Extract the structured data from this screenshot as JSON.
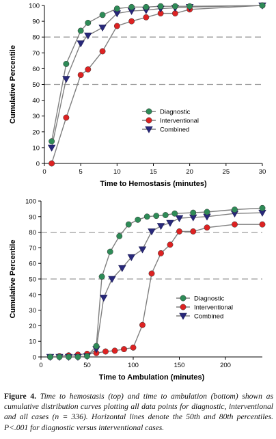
{
  "caption": {
    "label": "Figure 4.",
    "text": "Time to hemostasis (top) and time to ambulation (bottom) shown as cumulative distribution curves plotting all data points for diagnostic, interventional and all cases (n = 336). Horizontal lines denote the 50th and 80th percentiles. P<.001 for diagnostic versus interventional cases."
  },
  "chart_data": [
    {
      "type": "line",
      "xlabel": "Time to Hemostasis (minutes)",
      "ylabel": "Cumulative Percentile",
      "xlim": [
        0,
        30
      ],
      "ylim": [
        0,
        100
      ],
      "xticks": [
        0,
        5,
        10,
        15,
        20,
        25,
        30
      ],
      "yticks": [
        0,
        10,
        20,
        30,
        40,
        50,
        60,
        70,
        80,
        90,
        100
      ],
      "reference_lines": [
        50,
        80
      ],
      "grid": false,
      "legend_position": "lower-right",
      "series": [
        {
          "name": "Diagnostic",
          "color": "#2e8b57",
          "marker": "circle",
          "x": [
            1,
            3,
            5,
            6,
            8,
            10,
            12,
            14,
            16,
            18,
            20,
            30
          ],
          "y": [
            14,
            63,
            84,
            89,
            94,
            98,
            99,
            99,
            99.5,
            99.5,
            99.5,
            100
          ]
        },
        {
          "name": "Interventional",
          "color": "#dd2222",
          "marker": "circle",
          "x": [
            1,
            3,
            5,
            6,
            8,
            10,
            12,
            14,
            16,
            18,
            20,
            30
          ],
          "y": [
            0,
            29,
            56,
            59.5,
            71,
            87,
            90,
            92.5,
            95,
            95,
            97.5,
            100
          ]
        },
        {
          "name": "Combined",
          "color": "#28287a",
          "marker": "triangle-down",
          "x": [
            1,
            3,
            5,
            6,
            8,
            10,
            12,
            14,
            16,
            18,
            20,
            30
          ],
          "y": [
            10,
            53.5,
            76,
            81,
            86,
            95,
            96.5,
            97,
            98,
            98.5,
            99,
            100
          ]
        }
      ]
    },
    {
      "type": "line",
      "xlabel": "Time to Ambulation (minutes)",
      "ylabel": "Cumulative Percentile",
      "xlim": [
        0,
        240
      ],
      "ylim": [
        0,
        100
      ],
      "xticks": [
        0,
        50,
        100,
        150,
        200
      ],
      "yticks": [
        0,
        10,
        20,
        30,
        40,
        50,
        60,
        70,
        80,
        90,
        100
      ],
      "reference_lines": [
        50,
        80
      ],
      "grid": false,
      "legend_position": "lower-right",
      "series": [
        {
          "name": "Diagnostic",
          "color": "#2e8b57",
          "marker": "circle",
          "x": [
            10,
            20,
            30,
            40,
            50,
            60,
            66,
            75,
            85,
            95,
            105,
            115,
            125,
            135,
            145,
            165,
            180,
            210,
            240
          ],
          "y": [
            0,
            0,
            0,
            0,
            0.5,
            7,
            51.5,
            67.5,
            77.5,
            85,
            88,
            90,
            90.5,
            91,
            92,
            92.5,
            93,
            94.5,
            95.5
          ]
        },
        {
          "name": "Interventional",
          "color": "#dd2222",
          "marker": "circle",
          "x": [
            10,
            20,
            30,
            40,
            50,
            60,
            70,
            80,
            90,
            100,
            110,
            120,
            130,
            140,
            150,
            165,
            180,
            210,
            240
          ],
          "y": [
            0,
            0.5,
            1,
            1.5,
            2,
            2.5,
            3.5,
            4,
            5,
            6,
            20.5,
            53.5,
            66.5,
            72,
            80.5,
            80.5,
            83,
            85,
            85
          ]
        },
        {
          "name": "Combined",
          "color": "#28287a",
          "marker": "triangle-down",
          "x": [
            10,
            20,
            30,
            40,
            50,
            60,
            68,
            77,
            88,
            98,
            110,
            120,
            130,
            140,
            150,
            165,
            180,
            210,
            240
          ],
          "y": [
            0,
            0,
            0,
            0,
            0.5,
            5,
            38,
            50,
            57,
            64,
            69,
            80.5,
            84,
            86,
            89,
            89.5,
            90,
            92,
            92.5
          ]
        }
      ]
    }
  ]
}
